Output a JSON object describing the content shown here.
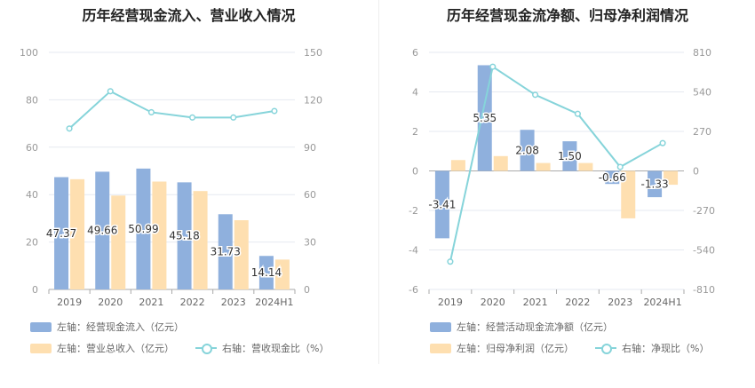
{
  "colors": {
    "blue": "#8fb0dd",
    "orange": "#fedfb0",
    "teal": "#86d4da",
    "grid": "#e6e9f0",
    "axis": "#999999"
  },
  "left_panel": {
    "title": "历年经营现金流入、营业收入情况",
    "legend": {
      "item1": "左轴：经营现金流入（亿元）",
      "item2": "左轴：营业总收入（亿元）",
      "item3": "右轴：营收现金比（%）"
    }
  },
  "right_panel": {
    "title": "历年经营现金流净额、归母净利润情况",
    "legend": {
      "item1": "左轴：经营活动现金流净额（亿元）",
      "item2": "左轴：归母净利润（亿元）",
      "item3": "右轴：净现比（%）"
    }
  },
  "chart_data": [
    {
      "type": "bar",
      "categories": [
        "2019",
        "2020",
        "2021",
        "2022",
        "2023",
        "2024H1"
      ],
      "series": [
        {
          "name": "左轴：经营现金流入（亿元）",
          "axis": "left",
          "type": "bar",
          "values": [
            47.37,
            49.66,
            50.99,
            45.18,
            31.73,
            14.14
          ],
          "labels": [
            "47.37",
            "49.66",
            "50.99",
            "45.18",
            "31.73",
            "14.14"
          ]
        },
        {
          "name": "左轴：营业总收入（亿元）",
          "axis": "left",
          "type": "bar",
          "values": [
            46.5,
            39.6,
            45.5,
            41.5,
            29.2,
            12.6
          ]
        },
        {
          "name": "右轴：营收现金比（%）",
          "axis": "right",
          "type": "line",
          "values": [
            101.8,
            125.4,
            112.1,
            108.8,
            108.8,
            112.9
          ]
        }
      ],
      "left_axis": {
        "min": 0,
        "max": 100,
        "ticks": [
          "0",
          "20",
          "40",
          "60",
          "80",
          "100"
        ]
      },
      "right_axis": {
        "min": 0,
        "max": 150,
        "ticks": [
          "0",
          "30",
          "60",
          "90",
          "120",
          "150"
        ]
      },
      "grid": true
    },
    {
      "type": "bar",
      "categories": [
        "2019",
        "2020",
        "2021",
        "2022",
        "2023",
        "2024H1"
      ],
      "series": [
        {
          "name": "左轴：经营活动现金流净额（亿元）",
          "axis": "left",
          "type": "bar",
          "values": [
            -3.41,
            5.35,
            2.08,
            1.5,
            -0.66,
            -1.33
          ],
          "labels": [
            "-3.41",
            "5.35",
            "2.08",
            "1.50",
            "-0.66",
            "-1.33"
          ]
        },
        {
          "name": "左轴：归母净利润（亿元）",
          "axis": "left",
          "type": "bar",
          "values": [
            0.55,
            0.75,
            0.4,
            0.4,
            -2.4,
            -0.7
          ]
        },
        {
          "name": "右轴：净现比（%）",
          "axis": "right",
          "type": "line",
          "values": [
            -620,
            712,
            520,
            390,
            27,
            190
          ]
        }
      ],
      "left_axis": {
        "min": -6,
        "max": 6,
        "ticks": [
          "-6",
          "-4",
          "-2",
          "0",
          "2",
          "4",
          "6"
        ]
      },
      "right_axis": {
        "min": -810,
        "max": 810,
        "ticks": [
          "-810",
          "-540",
          "-270",
          "0",
          "270",
          "540",
          "810"
        ]
      },
      "grid": true
    }
  ]
}
